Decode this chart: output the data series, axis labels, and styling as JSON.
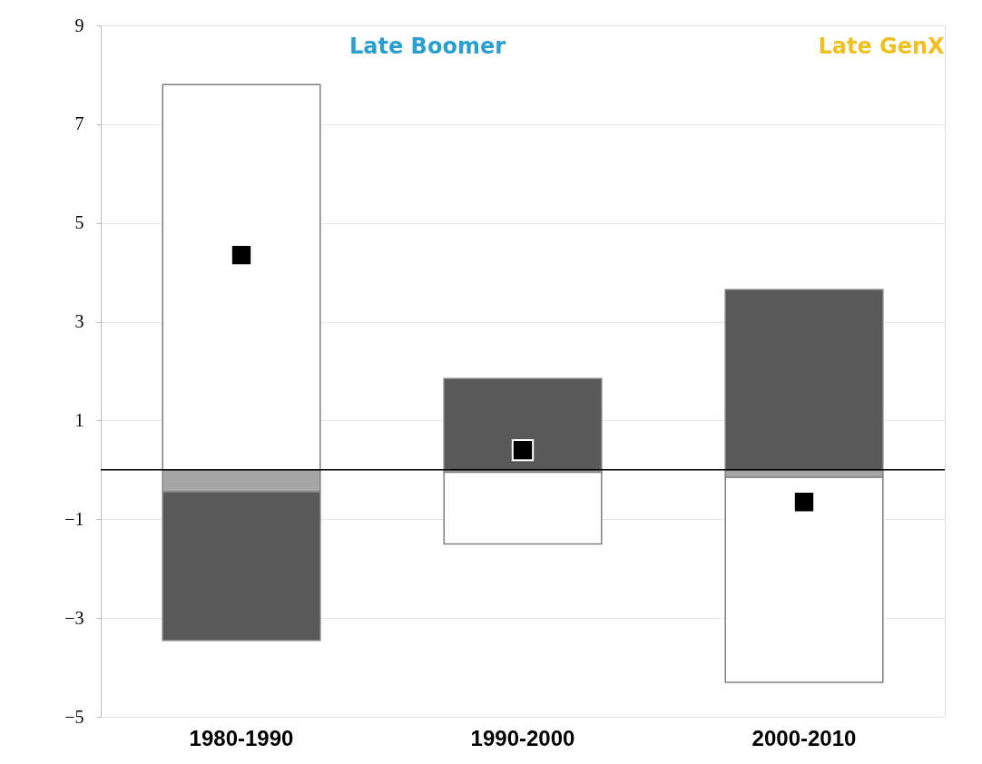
{
  "chart_data": {
    "type": "bar",
    "stacked": true,
    "categories": [
      "1980-1990",
      "1990-2000",
      "2000-2010"
    ],
    "series": [
      {
        "color": "#a6a6a6",
        "values": [
          -0.45,
          -0.05,
          -0.15
        ]
      },
      {
        "color": "#595959",
        "values": [
          -3.0,
          1.85,
          3.65
        ]
      },
      {
        "color": "#ffffff",
        "values": [
          7.8,
          -1.45,
          -4.15
        ]
      },
      {
        "type": "scatter",
        "color": "#000000",
        "x": [
          "1980-1990",
          "1990-2000",
          "2000-2010"
        ],
        "values": [
          4.35,
          0.4,
          -0.65
        ]
      }
    ],
    "annotations": [
      "Late Boomer",
      "Late GenX"
    ],
    "ylim": [
      -5,
      9
    ],
    "yticks": [
      -5,
      -3,
      -1,
      1,
      3,
      5,
      7,
      9
    ],
    "grid": "y",
    "marker": "square"
  }
}
